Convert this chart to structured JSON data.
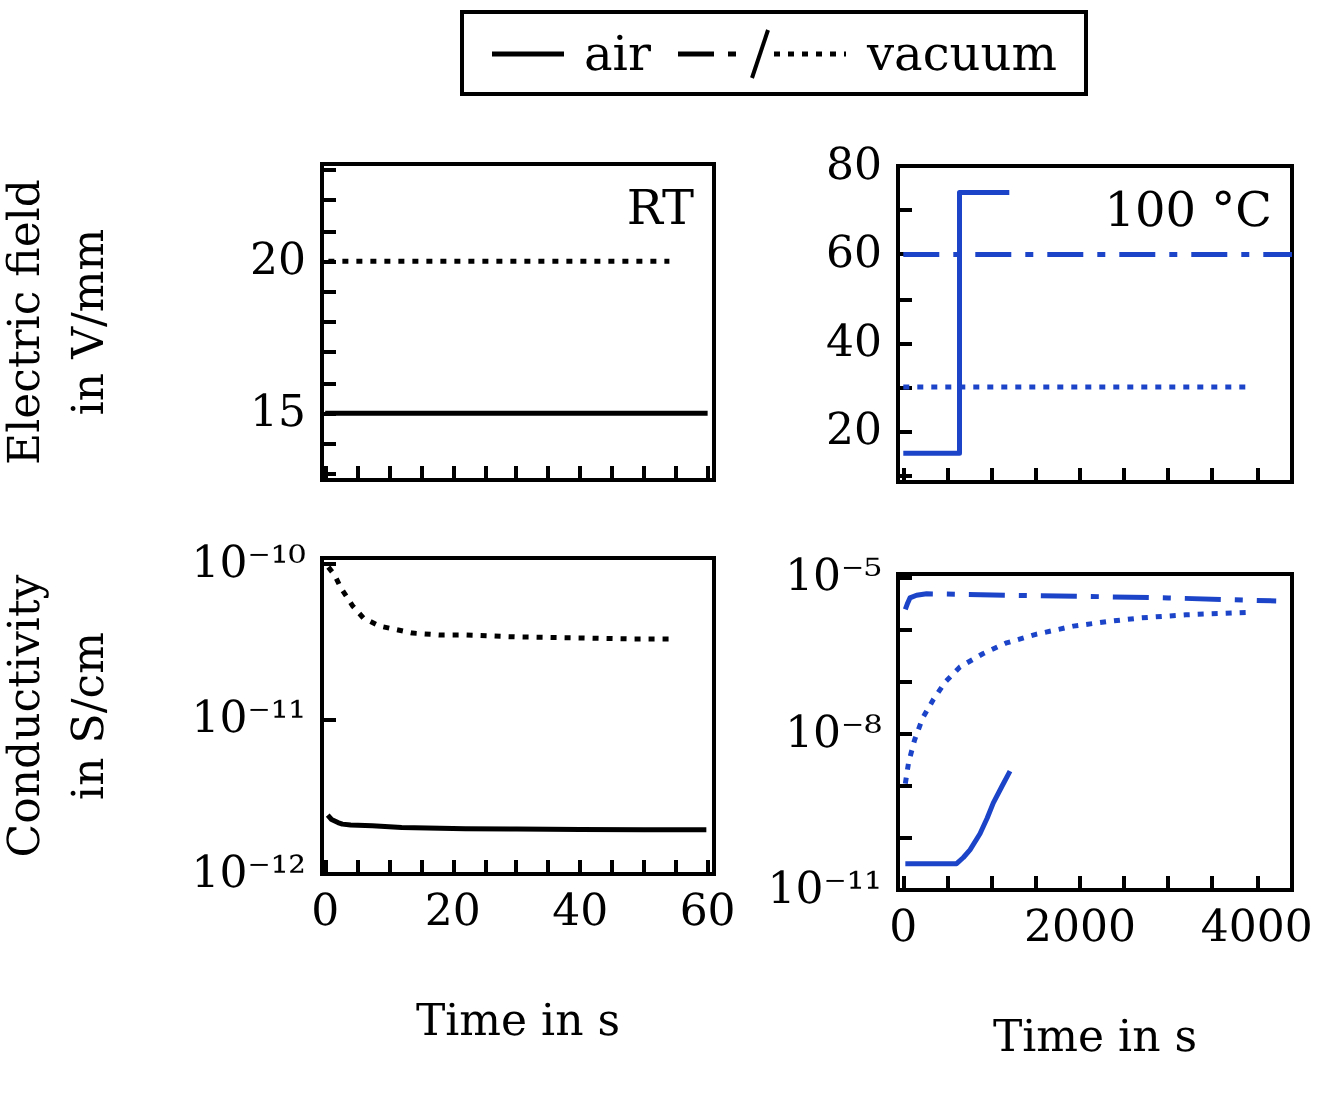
{
  "chart_data": [
    {
      "type": "line",
      "ylabel": "Electric field in V/mm",
      "annotations": [
        "RT"
      ],
      "legend": "top",
      "marker": "none",
      "grid": false,
      "tick_labels": "y",
      "xlim": [
        -0.5,
        61
      ],
      "xticks": [
        0,
        {
          "value": 5,
          "label": null
        },
        {
          "value": 10,
          "label": null
        },
        {
          "value": 15,
          "label": null
        },
        20,
        {
          "value": 25,
          "label": null
        },
        {
          "value": 30,
          "label": null
        },
        {
          "value": 35,
          "label": null
        },
        40,
        {
          "value": 45,
          "label": null
        },
        {
          "value": 50,
          "label": null
        },
        {
          "value": 55,
          "label": null
        },
        60
      ],
      "ylim": [
        12.8,
        23.2
      ],
      "yticks": [
        {
          "value": 13,
          "label": null
        },
        {
          "value": 14,
          "label": null
        },
        15,
        {
          "value": 16,
          "label": null
        },
        {
          "value": 17,
          "label": null
        },
        {
          "value": 18,
          "label": null
        },
        {
          "value": 19,
          "label": null
        },
        20,
        {
          "value": 21,
          "label": null
        },
        {
          "value": 22,
          "label": null
        },
        {
          "value": 23,
          "label": null
        }
      ],
      "series": [
        {
          "name": "air",
          "color": "#000000",
          "line_style": "solid",
          "x": [
            0,
            60
          ],
          "values": [
            15,
            15
          ]
        },
        {
          "name": "vacuum",
          "color": "#000000",
          "line_style": "dotted",
          "x": [
            0.5,
            54
          ],
          "values": [
            20,
            20
          ]
        }
      ]
    },
    {
      "type": "line",
      "annotations": [
        "100 °C"
      ],
      "marker": "none",
      "grid": false,
      "tick_labels": "y",
      "xlim": [
        -60,
        4400
      ],
      "xticks": [
        0,
        {
          "value": 500,
          "label": null
        },
        {
          "value": 1000,
          "label": null
        },
        {
          "value": 1500,
          "label": null
        },
        2000,
        {
          "value": 2500,
          "label": null
        },
        {
          "value": 3000,
          "label": null
        },
        {
          "value": 3500,
          "label": null
        },
        4000
      ],
      "ylim": [
        8.5,
        80
      ],
      "yticks": [
        {
          "value": 10,
          "label": null
        },
        20,
        {
          "value": 30,
          "label": null
        },
        40,
        {
          "value": 50,
          "label": null
        },
        60,
        {
          "value": 70,
          "label": null
        },
        80
      ],
      "series": [
        {
          "color": "#1c44c9",
          "line_style": "solid",
          "x": [
            0,
            636,
            636,
            1200
          ],
          "values": [
            15,
            15,
            74,
            74
          ]
        },
        {
          "color": "#1c44c9",
          "line_style": "dashdot",
          "x": [
            0,
            4400
          ],
          "values": [
            60,
            60
          ]
        },
        {
          "color": "#1c44c9",
          "line_style": "dotted",
          "x": [
            0,
            3880
          ],
          "values": [
            30,
            30
          ]
        }
      ]
    },
    {
      "type": "line",
      "ylabel": "Conductivity in S/cm",
      "xlabel": "Time in s",
      "marker": "none",
      "grid": false,
      "log": "y",
      "xlim": [
        -0.5,
        61
      ],
      "xticks": [
        0,
        {
          "value": 5,
          "label": null
        },
        {
          "value": 10,
          "label": null
        },
        {
          "value": 15,
          "label": null
        },
        20,
        {
          "value": 25,
          "label": null
        },
        {
          "value": 30,
          "label": null
        },
        {
          "value": 35,
          "label": null
        },
        40,
        {
          "value": 45,
          "label": null
        },
        {
          "value": 50,
          "label": null
        },
        {
          "value": 55,
          "label": null
        },
        60
      ],
      "ylim": [
        1e-12,
        1.1e-10
      ],
      "yticks": [
        {
          "value": 1e-12,
          "label": "10⁻¹²"
        },
        {
          "value": 1e-11,
          "label": "10⁻¹¹"
        },
        {
          "value": 1e-10,
          "label": "10⁻¹⁰"
        }
      ],
      "series": [
        {
          "name": "air",
          "color": "#000000",
          "line_style": "solid",
          "x": [
            0.4,
            1,
            2,
            2.7,
            4,
            7.4,
            12,
            22,
            30,
            40,
            50,
            59.8
          ],
          "values": [
            2.4e-12,
            2.25e-12,
            2.15e-12,
            2.1e-12,
            2.07e-12,
            2.05e-12,
            2e-12,
            1.96e-12,
            1.95e-12,
            1.94e-12,
            1.93e-12,
            1.93e-12
          ]
        },
        {
          "name": "vacuum",
          "color": "#000000",
          "line_style": "dotted",
          "x": [
            0.5,
            1.5,
            2.5,
            4.3,
            6,
            8.5,
            11,
            13.7,
            18,
            22,
            30,
            40,
            48,
            54.6
          ],
          "values": [
            9.6e-11,
            8.5e-11,
            7e-11,
            5.4e-11,
            4.5e-11,
            4e-11,
            3.8e-11,
            3.6e-11,
            3.5e-11,
            3.5e-11,
            3.4e-11,
            3.35e-11,
            3.3e-11,
            3.3e-11
          ]
        }
      ]
    },
    {
      "type": "line",
      "xlabel": "Time in s",
      "marker": "none",
      "grid": false,
      "log": "y",
      "xlim": [
        -60,
        4400
      ],
      "xticks": [
        0,
        {
          "value": 500,
          "label": null
        },
        {
          "value": 1000,
          "label": null
        },
        {
          "value": 1500,
          "label": null
        },
        2000,
        {
          "value": 2500,
          "label": null
        },
        {
          "value": 3000,
          "label": null
        },
        {
          "value": 3500,
          "label": null
        },
        4000
      ],
      "ylim": [
        1e-11,
        1.15e-05
      ],
      "yticks": [
        {
          "value": 1e-11,
          "label": "10⁻¹¹"
        },
        {
          "value": 1e-10,
          "label": null
        },
        {
          "value": 1e-09,
          "label": null
        },
        {
          "value": 1e-08,
          "label": "10⁻⁸"
        },
        {
          "value": 1e-07,
          "label": null
        },
        {
          "value": 1e-06,
          "label": null
        },
        {
          "value": 1e-05,
          "label": "10⁻⁵"
        }
      ],
      "series": [
        {
          "color": "#1c44c9",
          "line_style": "solid",
          "x": [
            23,
            300,
            603,
            680,
            755,
            868,
            950,
            1019,
            1120,
            1208
          ],
          "values": [
            3.2e-11,
            3.2e-11,
            3.2e-11,
            4.2e-11,
            5.9e-11,
            1.2e-10,
            2.4e-10,
            4.7e-10,
            1e-09,
            1.9e-09
          ]
        },
        {
          "color": "#1c44c9",
          "line_style": "dashdot",
          "x": [
            23,
            50,
            75,
            150,
            264,
            600,
            1200,
            2000,
            3000,
            4221
          ],
          "values": [
            2.4e-06,
            3.2e-06,
            4e-06,
            4.5e-06,
            4.8e-06,
            4.7e-06,
            4.5e-06,
            4.3e-06,
            4e-06,
            3.5e-06
          ]
        },
        {
          "color": "#1c44c9",
          "line_style": "dotted",
          "x": [
            23,
            60,
            128,
            220,
            340,
            480,
            641,
            900,
            1170,
            1500,
            1924,
            2300,
            2679,
            3200,
            3887
          ],
          "values": [
            1.1e-09,
            2.8e-09,
            7.6e-09,
            2e-08,
            4.5e-08,
            1e-07,
            1.9e-07,
            3.4e-07,
            5.5e-07,
            8e-07,
            1.15e-06,
            1.4e-06,
            1.65e-06,
            1.9e-06,
            2.1e-06
          ]
        }
      ]
    }
  ]
}
